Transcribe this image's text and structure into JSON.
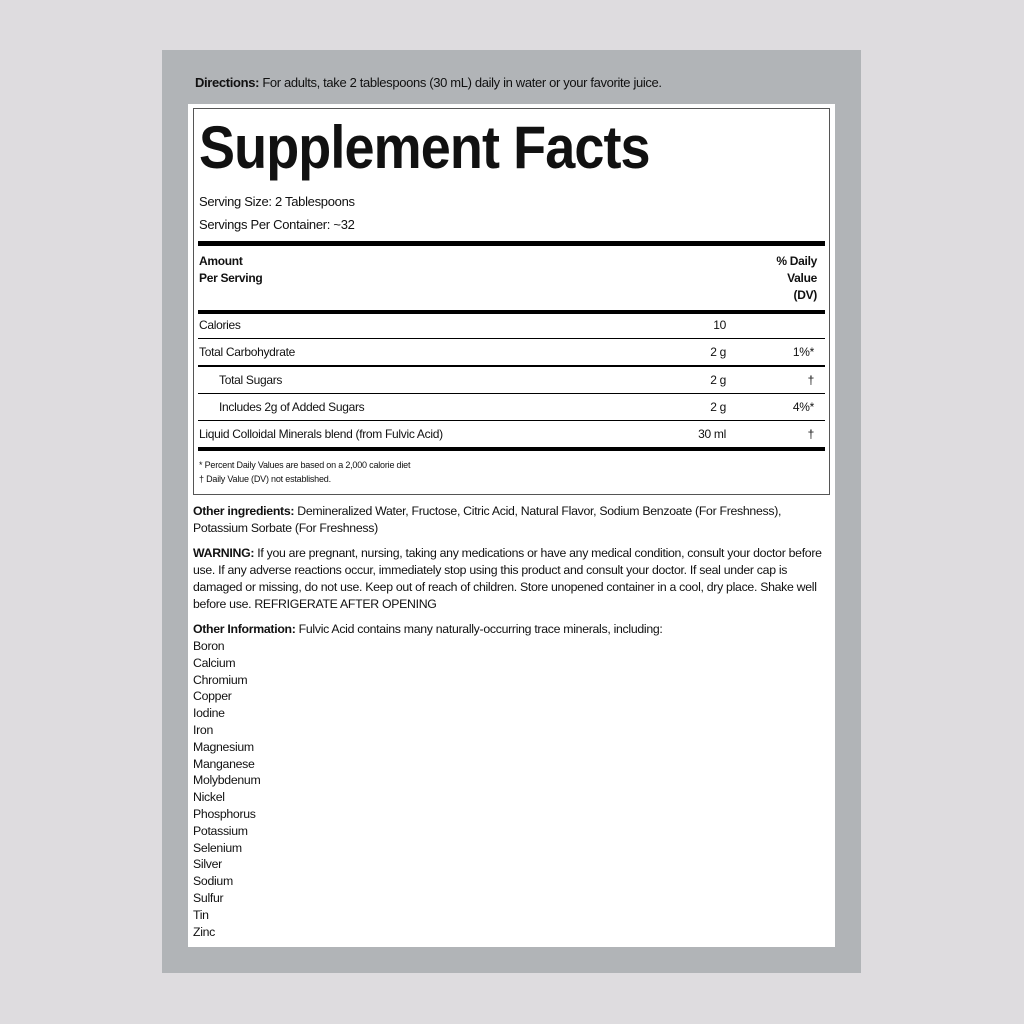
{
  "directions": {
    "label": "Directions:",
    "text": " For adults, take 2 tablespoons (30 mL) daily in water or your favorite juice."
  },
  "facts": {
    "title": "Supplement Facts",
    "serving_size": "Serving Size: 2 Tablespoons",
    "servings_per_container": "Servings Per Container: ~32",
    "header_amount": [
      "Amount",
      "Per Serving"
    ],
    "header_dv": [
      "% Daily",
      "Value",
      "(DV)"
    ],
    "rows": [
      {
        "name": "Calories",
        "amount": "10",
        "dv": ""
      },
      {
        "name": "Total Carbohydrate",
        "amount": "2 g",
        "dv": "1%*"
      },
      {
        "name": "Total Sugars",
        "amount": "2 g",
        "dv": "†"
      },
      {
        "name": "Includes 2g of Added Sugars",
        "amount": "2 g",
        "dv": "4%*"
      },
      {
        "name": "Liquid Colloidal Minerals blend (from Fulvic Acid)",
        "amount": "30 ml",
        "dv": "†"
      }
    ],
    "footnotes": [
      "* Percent Daily Values are based on a 2,000 calorie diet",
      "† Daily Value (DV) not established."
    ]
  },
  "other_ingredients": {
    "label": "Other ingredients:",
    "text": " Demineralized Water, Fructose, Citric Acid, Natural Flavor, Sodium Benzoate (For Freshness), Potassium Sorbate (For Freshness)"
  },
  "warning": {
    "label": "WARNING:",
    "text": " If you are pregnant, nursing, taking any medications or have any medical condition, consult your doctor before use. If any adverse reactions occur, immediately stop using this product and consult your doctor. If seal under cap is damaged or missing, do not use. Keep out of reach of children. Store unopened container in a cool, dry place. Shake well before use. REFRIGERATE AFTER OPENING"
  },
  "other_information": {
    "label": "Other Information:",
    "text": " Fulvic Acid contains many naturally-occurring trace minerals, including:"
  },
  "minerals": [
    "Boron",
    "Calcium",
    "Chromium",
    "Copper",
    "Iodine",
    "Iron",
    "Magnesium",
    "Manganese",
    "Molybdenum",
    "Nickel",
    "Phosphorus",
    "Potassium",
    "Selenium",
    "Silver",
    "Sodium",
    "Sulfur",
    "Tin",
    "Zinc"
  ]
}
